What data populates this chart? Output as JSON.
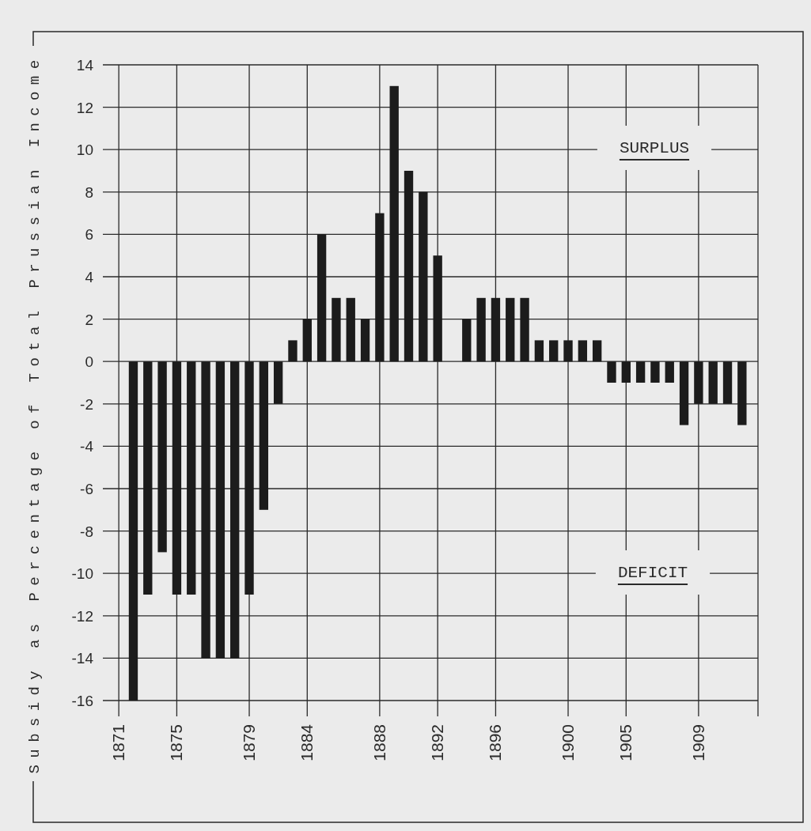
{
  "chart_data": {
    "type": "bar",
    "ylabel": "Subsidy as Percentage of Total Prussian Income",
    "categories": [
      "1871",
      null,
      null,
      null,
      "1875",
      null,
      null,
      null,
      null,
      "1879",
      null,
      null,
      null,
      "1884",
      null,
      null,
      null,
      null,
      "1888",
      null,
      null,
      null,
      "1892",
      null,
      null,
      null,
      "1896",
      null,
      null,
      null,
      null,
      "1900",
      null,
      null,
      null,
      "1905",
      null,
      null,
      null,
      null,
      "1909",
      null,
      null,
      null
    ],
    "values": [
      null,
      -16,
      -11,
      -9,
      -11,
      -11,
      -14,
      -14,
      -14,
      -11,
      -7,
      -2,
      1,
      2,
      6,
      3,
      3,
      2,
      7,
      13,
      9,
      8,
      5,
      null,
      2,
      3,
      3,
      3,
      3,
      1,
      1,
      1,
      1,
      1,
      -1,
      -1,
      -1,
      -1,
      -1,
      -3,
      -2,
      -2,
      -2,
      -3
    ],
    "color": "#1c1c1c",
    "ylim": [
      -16,
      14
    ],
    "yticks": [
      -16,
      -14,
      -12,
      -10,
      -8,
      -6,
      -4,
      -2,
      0,
      2,
      4,
      6,
      8,
      10,
      12,
      14
    ],
    "grid": true,
    "annotations": [
      "SURPLUS",
      "DEFICIT"
    ]
  }
}
